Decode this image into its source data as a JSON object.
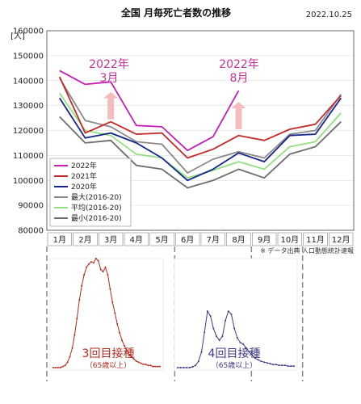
{
  "header": {
    "title": "全国 月毎死亡者数の推移",
    "date": "2022.10.25"
  },
  "chart_data": {
    "type": "line",
    "y_unit_label": "[人]",
    "categories": [
      "1月",
      "2月",
      "3月",
      "4月",
      "5月",
      "6月",
      "7月",
      "8月",
      "9月",
      "10月",
      "11月",
      "12月"
    ],
    "ylim": [
      80000,
      160000
    ],
    "yticks": [
      80000,
      90000,
      100000,
      110000,
      120000,
      130000,
      140000,
      150000,
      160000
    ],
    "grid": true,
    "legend_position": "lower-left",
    "series": [
      {
        "name": "2022年",
        "color": "#c71fb5",
        "values": [
          144000,
          138500,
          139500,
          122000,
          121500,
          112000,
          117500,
          136000,
          null,
          null,
          null,
          null
        ]
      },
      {
        "name": "2021年",
        "color": "#c62828",
        "values": [
          141500,
          119000,
          123500,
          118500,
          119000,
          109000,
          112500,
          118000,
          116000,
          120500,
          122500,
          134000
        ]
      },
      {
        "name": "2020年",
        "color": "#14248c",
        "values": [
          133000,
          117000,
          119000,
          115000,
          109000,
          100000,
          104500,
          111000,
          107500,
          118000,
          118500,
          133000
        ]
      },
      {
        "name": "最大(2016-20)",
        "color": "#8a8a8a",
        "values": [
          141000,
          124000,
          121500,
          115500,
          114500,
          103000,
          108500,
          111500,
          109000,
          118500,
          120000,
          134500
        ]
      },
      {
        "name": "平均(2016-20)",
        "color": "#93e083",
        "values": [
          135000,
          120000,
          118000,
          110500,
          109000,
          101000,
          104000,
          107500,
          104500,
          113500,
          115500,
          127000
        ]
      },
      {
        "name": "最小(2016-20)",
        "color": "#6e6e6e",
        "values": [
          125500,
          115000,
          116000,
          106000,
          104500,
          97000,
          100000,
          104500,
          101000,
          110500,
          113500,
          123500
        ]
      }
    ],
    "annotations": [
      {
        "month": "3月",
        "text_line1": "2022年",
        "text_line2": "3月"
      },
      {
        "month": "8月",
        "text_line1": "2022年",
        "text_line2": "8月"
      }
    ],
    "source_note": "※ データ出典 人口動態統計速報"
  },
  "vaccination": {
    "dose3": {
      "line1": "3回目接種",
      "line2": "（65歳以上）",
      "color": "#b82a1e",
      "profile": [
        0,
        0,
        0,
        0,
        0.01,
        0.02,
        0.05,
        0.1,
        0.18,
        0.3,
        0.45,
        0.62,
        0.75,
        0.85,
        0.92,
        0.95,
        0.97,
        0.96,
        1,
        0.98,
        0.9,
        0.88,
        0.92,
        0.85,
        0.72,
        0.6,
        0.5,
        0.4,
        0.32,
        0.25,
        0.2,
        0.16,
        0.12,
        0.1,
        0.08,
        0.06,
        0.05,
        0.04,
        0.03,
        0.03,
        0.02,
        0.02,
        0.01,
        0.01,
        0.01,
        0.01
      ]
    },
    "dose4": {
      "line1": "4回目接種",
      "line2": "（65歳以上）",
      "color": "#3f3a86",
      "profile": [
        0,
        0,
        0,
        0,
        0,
        0.01,
        0.03,
        0.08,
        0.2,
        0.45,
        0.72,
        0.66,
        0.5,
        0.4,
        0.35,
        0.4,
        0.6,
        0.72,
        0.68,
        0.5,
        0.38,
        0.32,
        0.3,
        0.25,
        0.2,
        0.16,
        0.12,
        0.1,
        0.08,
        0.07,
        0.06,
        0.05,
        0.04,
        0.04,
        0.03,
        0.03,
        0.03,
        0.02,
        0.02,
        0.02
      ]
    }
  }
}
